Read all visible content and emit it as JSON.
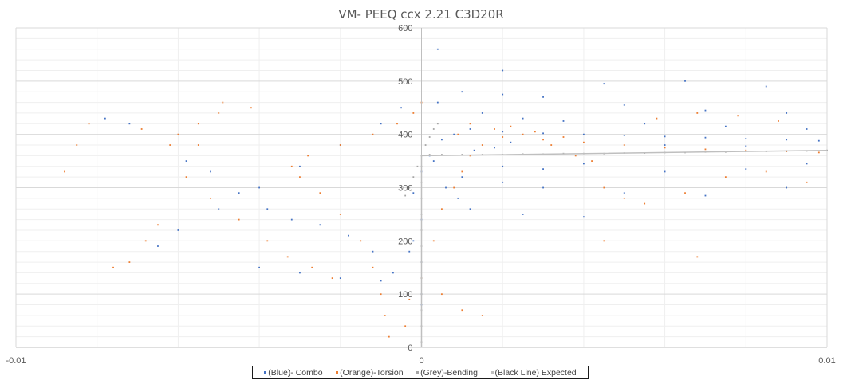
{
  "chart_data": {
    "type": "scatter",
    "title": "VM- PEEQ  ccx 2.21 C3D20R",
    "xlabel": "",
    "ylabel": "",
    "xlim": [
      -0.01,
      0.01
    ],
    "ylim": [
      0,
      600
    ],
    "x_ticks": [
      "-0.01",
      "0",
      "0.01"
    ],
    "y_ticks": [
      "0",
      "100",
      "200",
      "300",
      "400",
      "500",
      "600"
    ],
    "grid": true,
    "legend_position": "bottom",
    "series": [
      {
        "name": "(Blue)- Combo",
        "color": "#4472c4",
        "points": [
          [
            0.0,
            160
          ],
          [
            0.0,
            240
          ],
          [
            -0.0002,
            290
          ],
          [
            0.0,
            330
          ],
          [
            0.0002,
            360
          ],
          [
            0.0005,
            390
          ],
          [
            0.0008,
            400
          ],
          [
            0.0012,
            410
          ],
          [
            0.002,
            405
          ],
          [
            0.003,
            402
          ],
          [
            0.004,
            400
          ],
          [
            0.005,
            398
          ],
          [
            0.006,
            396
          ],
          [
            0.007,
            394
          ],
          [
            0.008,
            392
          ],
          [
            0.009,
            390
          ],
          [
            0.0098,
            388
          ],
          [
            0.0004,
            460
          ],
          [
            0.001,
            480
          ],
          [
            0.002,
            475
          ],
          [
            0.003,
            470
          ],
          [
            0.005,
            455
          ],
          [
            0.007,
            445
          ],
          [
            0.009,
            440
          ],
          [
            0.0015,
            440
          ],
          [
            0.0025,
            430
          ],
          [
            0.0035,
            425
          ],
          [
            0.0055,
            420
          ],
          [
            0.0075,
            415
          ],
          [
            0.0095,
            410
          ],
          [
            0.001,
            320
          ],
          [
            0.002,
            310
          ],
          [
            0.003,
            300
          ],
          [
            0.005,
            290
          ],
          [
            0.007,
            285
          ],
          [
            0.009,
            300
          ],
          [
            0.0012,
            260
          ],
          [
            0.0025,
            250
          ],
          [
            0.004,
            245
          ],
          [
            -0.0005,
            450
          ],
          [
            -0.001,
            420
          ],
          [
            -0.002,
            380
          ],
          [
            -0.003,
            340
          ],
          [
            -0.004,
            300
          ],
          [
            -0.005,
            260
          ],
          [
            -0.006,
            220
          ],
          [
            -0.0065,
            190
          ],
          [
            -0.004,
            150
          ],
          [
            -0.003,
            140
          ],
          [
            -0.002,
            130
          ],
          [
            -0.001,
            125
          ],
          [
            -0.0007,
            140
          ],
          [
            -0.0003,
            180
          ],
          [
            -0.0002,
            200
          ],
          [
            0.0,
            100
          ],
          [
            0.0,
            80
          ],
          [
            0.0003,
            350
          ],
          [
            0.0006,
            300
          ],
          [
            0.0009,
            280
          ],
          [
            0.002,
            340
          ],
          [
            0.003,
            335
          ],
          [
            0.004,
            345
          ],
          [
            0.006,
            330
          ],
          [
            0.008,
            335
          ],
          [
            0.0095,
            345
          ],
          [
            0.0013,
            370
          ],
          [
            0.0018,
            375
          ],
          [
            0.0022,
            385
          ],
          [
            0.006,
            380
          ],
          [
            0.008,
            378
          ],
          [
            0.0004,
            560
          ],
          [
            0.002,
            520
          ],
          [
            0.0045,
            495
          ],
          [
            0.0065,
            500
          ],
          [
            0.0085,
            490
          ],
          [
            -0.0078,
            430
          ],
          [
            -0.0072,
            420
          ],
          [
            -0.0058,
            350
          ],
          [
            -0.0052,
            330
          ],
          [
            -0.0045,
            290
          ],
          [
            -0.0038,
            260
          ],
          [
            -0.0032,
            240
          ],
          [
            -0.0025,
            230
          ],
          [
            -0.0018,
            210
          ],
          [
            -0.0012,
            180
          ]
        ]
      },
      {
        "name": "(Orange)-Torsion",
        "color": "#ed7d31",
        "points": [
          [
            -0.0008,
            20
          ],
          [
            -0.0009,
            60
          ],
          [
            -0.001,
            100
          ],
          [
            -0.0012,
            150
          ],
          [
            -0.0015,
            200
          ],
          [
            -0.002,
            250
          ],
          [
            -0.0025,
            290
          ],
          [
            -0.003,
            320
          ],
          [
            -0.0032,
            340
          ],
          [
            -0.0028,
            360
          ],
          [
            -0.002,
            380
          ],
          [
            -0.0012,
            400
          ],
          [
            -0.0006,
            420
          ],
          [
            -0.0002,
            440
          ],
          [
            0.0,
            460
          ],
          [
            -0.0004,
            40
          ],
          [
            -0.0003,
            90
          ],
          [
            0.0,
            130
          ],
          [
            0.0003,
            200
          ],
          [
            0.0005,
            260
          ],
          [
            0.0008,
            300
          ],
          [
            0.001,
            330
          ],
          [
            0.0012,
            360
          ],
          [
            0.0015,
            380
          ],
          [
            0.002,
            395
          ],
          [
            0.003,
            390
          ],
          [
            0.004,
            385
          ],
          [
            0.005,
            380
          ],
          [
            0.006,
            375
          ],
          [
            0.007,
            372
          ],
          [
            0.008,
            370
          ],
          [
            0.009,
            368
          ],
          [
            0.0098,
            366
          ],
          [
            0.0009,
            400
          ],
          [
            0.0018,
            410
          ],
          [
            0.0025,
            400
          ],
          [
            0.0035,
            395
          ],
          [
            0.0045,
            300
          ],
          [
            0.005,
            280
          ],
          [
            0.0055,
            270
          ],
          [
            0.0065,
            290
          ],
          [
            0.0075,
            320
          ],
          [
            0.0085,
            330
          ],
          [
            0.0095,
            310
          ],
          [
            -0.0042,
            450
          ],
          [
            -0.005,
            440
          ],
          [
            -0.0055,
            420
          ],
          [
            -0.006,
            400
          ],
          [
            -0.0062,
            380
          ],
          [
            -0.0058,
            320
          ],
          [
            -0.0052,
            280
          ],
          [
            -0.0045,
            240
          ],
          [
            -0.0038,
            200
          ],
          [
            -0.0033,
            170
          ],
          [
            -0.0027,
            150
          ],
          [
            -0.0022,
            130
          ],
          [
            -0.0068,
            200
          ],
          [
            -0.0072,
            160
          ],
          [
            -0.0076,
            150
          ],
          [
            -0.0065,
            230
          ],
          [
            -0.0082,
            420
          ],
          [
            -0.0085,
            380
          ],
          [
            -0.0088,
            330
          ],
          [
            -0.0069,
            410
          ],
          [
            -0.0049,
            460
          ],
          [
            -0.0055,
            380
          ],
          [
            0.0012,
            420
          ],
          [
            0.0022,
            415
          ],
          [
            0.0028,
            405
          ],
          [
            0.0032,
            380
          ],
          [
            0.0038,
            360
          ],
          [
            0.0042,
            350
          ],
          [
            0.0058,
            430
          ],
          [
            0.0068,
            440
          ],
          [
            0.0078,
            435
          ],
          [
            0.0088,
            425
          ],
          [
            0.0005,
            100
          ],
          [
            0.001,
            70
          ],
          [
            0.0015,
            60
          ],
          [
            0.0045,
            200
          ],
          [
            0.0068,
            170
          ]
        ]
      },
      {
        "name": "(Grey)-Bending",
        "color": "#a5a5a5",
        "points": [
          [
            0.0,
            10
          ],
          [
            0.0,
            40
          ],
          [
            0.0,
            70
          ],
          [
            0.0,
            100
          ],
          [
            0.0,
            130
          ],
          [
            0.0,
            160
          ],
          [
            0.0,
            190
          ],
          [
            0.0,
            220
          ],
          [
            0.0,
            250
          ],
          [
            0.0,
            280
          ],
          [
            0.0,
            310
          ],
          [
            0.0,
            340
          ],
          [
            0.0,
            360
          ],
          [
            0.0001,
            380
          ],
          [
            0.0002,
            395
          ],
          [
            0.0003,
            410
          ],
          [
            0.0004,
            420
          ],
          [
            -0.0001,
            340
          ],
          [
            -0.0002,
            320
          ],
          [
            -0.0003,
            300
          ],
          [
            -0.0004,
            285
          ],
          [
            0.0002,
            362
          ],
          [
            0.0005,
            362
          ],
          [
            0.001,
            362
          ],
          [
            0.0015,
            362
          ],
          [
            0.002,
            362
          ],
          [
            0.0025,
            363
          ],
          [
            0.003,
            363
          ],
          [
            0.0035,
            364
          ],
          [
            0.004,
            364
          ],
          [
            0.0045,
            364
          ],
          [
            0.005,
            365
          ],
          [
            0.0055,
            365
          ],
          [
            0.006,
            366
          ],
          [
            0.0065,
            366
          ],
          [
            0.007,
            367
          ],
          [
            0.0075,
            367
          ],
          [
            0.008,
            368
          ],
          [
            0.0085,
            368
          ],
          [
            0.009,
            369
          ],
          [
            0.0095,
            369
          ],
          [
            0.01,
            370
          ]
        ]
      },
      {
        "name": "(Black Line) Expected",
        "color": "#bfbfbf",
        "line": true,
        "points": [
          [
            0.0,
            0
          ],
          [
            0.0,
            360
          ],
          [
            0.01,
            370
          ]
        ]
      }
    ]
  }
}
